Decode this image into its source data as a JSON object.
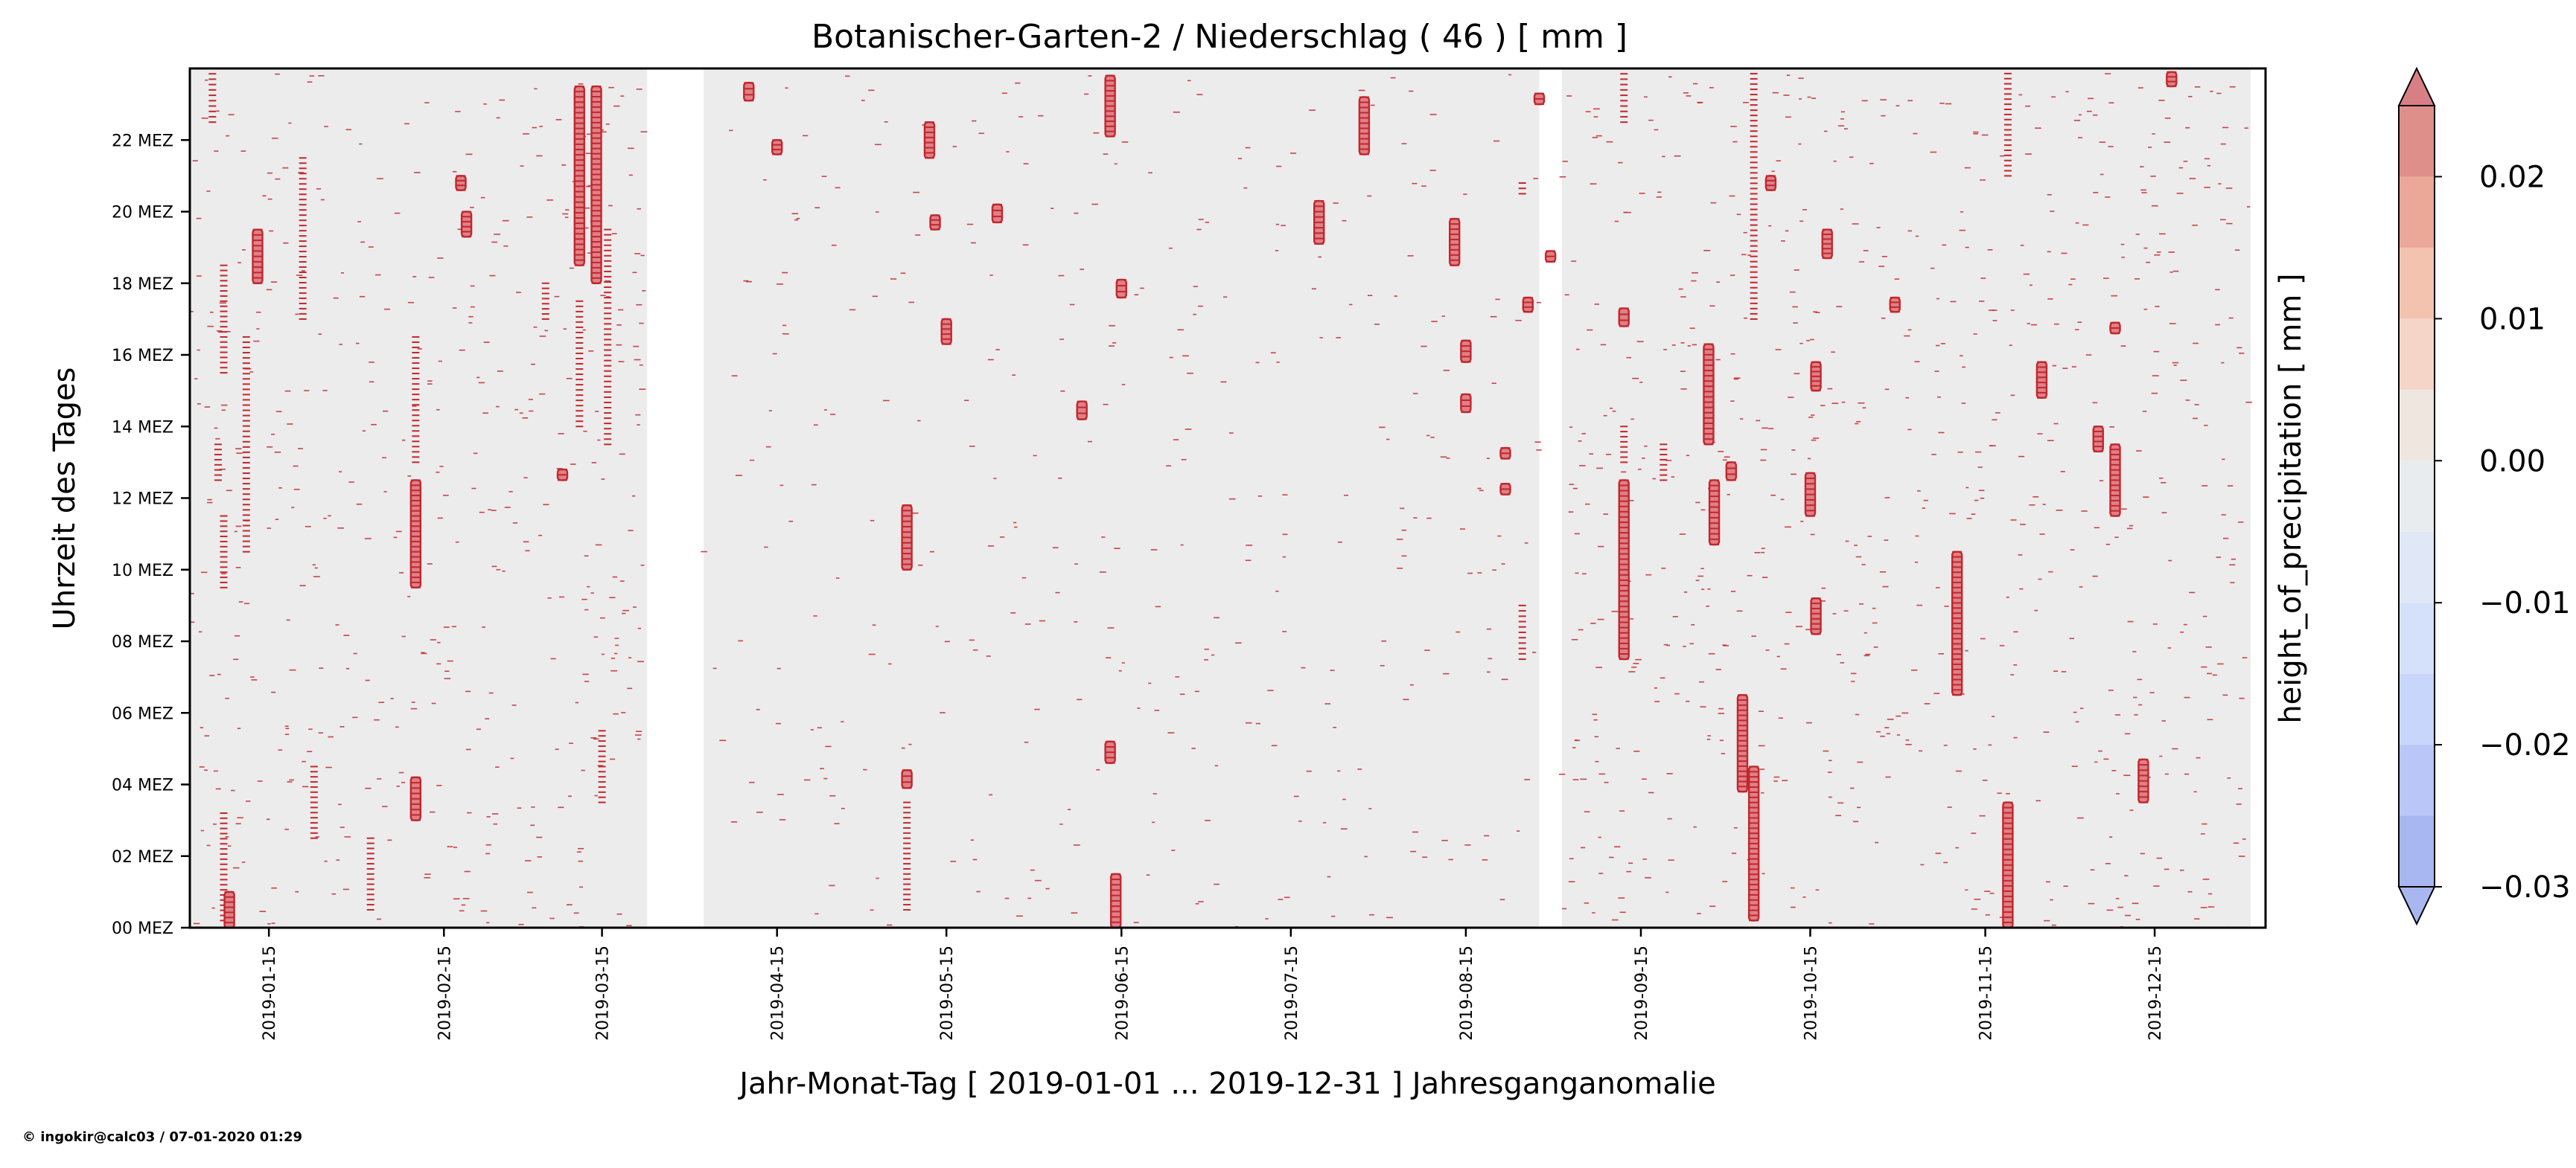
{
  "chart_data": {
    "type": "heatmap",
    "title": "Botanischer-Garten-2 / Niederschlag ( 46 ) [ mm ]",
    "xlabel": "Jahr-Monat-Tag [ 2019-01-01 ... 2019-12-31 ] Jahresganganomalie",
    "ylabel": "Uhrzeit des Tages",
    "colorbar_label": "height_of_precipitation [ mm ]",
    "x_range": [
      "2019-01-01",
      "2019-12-31"
    ],
    "y_range_hours": [
      0,
      24
    ],
    "x_ticks": [
      "2019-01-15",
      "2019-02-15",
      "2019-03-15",
      "2019-04-15",
      "2019-05-15",
      "2019-06-15",
      "2019-07-15",
      "2019-08-15",
      "2019-09-15",
      "2019-10-15",
      "2019-11-15",
      "2019-12-15"
    ],
    "y_ticks": [
      {
        "hour": 0,
        "label": "00 MEZ"
      },
      {
        "hour": 2,
        "label": "02 MEZ"
      },
      {
        "hour": 4,
        "label": "04 MEZ"
      },
      {
        "hour": 6,
        "label": "06 MEZ"
      },
      {
        "hour": 8,
        "label": "08 MEZ"
      },
      {
        "hour": 10,
        "label": "10 MEZ"
      },
      {
        "hour": 12,
        "label": "12 MEZ"
      },
      {
        "hour": 14,
        "label": "14 MEZ"
      },
      {
        "hour": 16,
        "label": "16 MEZ"
      },
      {
        "hour": 18,
        "label": "18 MEZ"
      },
      {
        "hour": 20,
        "label": "20 MEZ"
      },
      {
        "hour": 22,
        "label": "22 MEZ"
      }
    ],
    "data_gaps": [
      {
        "from": "2019-03-23",
        "to": "2019-04-01"
      },
      {
        "from": "2019-08-28",
        "to": "2019-08-31"
      }
    ],
    "colorbar": {
      "levels": [
        -0.03,
        -0.025,
        -0.02,
        -0.015,
        -0.01,
        -0.005,
        0.0,
        0.005,
        0.01,
        0.015,
        0.02,
        0.025
      ],
      "colors": [
        "#a8b7f0",
        "#b8c7f7",
        "#c7d6fa",
        "#d5e0fa",
        "#e0e8f7",
        "#e9ecef",
        "#efe6e0",
        "#f5d5c8",
        "#f4c3b0",
        "#eba898",
        "#df8f8a",
        "#d87f85"
      ],
      "ticks": [
        {
          "value": 0.02,
          "label": "0.02"
        },
        {
          "value": 0.01,
          "label": "0.01"
        },
        {
          "value": 0.0,
          "label": "0.00"
        },
        {
          "value": -0.01,
          "label": "−0.01"
        },
        {
          "value": -0.02,
          "label": "−0.02"
        },
        {
          "value": -0.03,
          "label": "−0.03"
        }
      ],
      "extend": "both"
    },
    "background_color": "#ececec",
    "event_color": "#c0272d",
    "strong_event_color": "#e07f86",
    "events": [
      {
        "d": 4,
        "h0": 22.5,
        "h1": 24,
        "v": 0.021
      },
      {
        "d": 5,
        "h0": 12.5,
        "h1": 13.5,
        "v": 0.02
      },
      {
        "d": 6,
        "h0": 0.2,
        "h1": 3.2,
        "v": 0.02
      },
      {
        "d": 6,
        "h0": 9.5,
        "h1": 11.5,
        "v": 0.021
      },
      {
        "d": 6,
        "h0": 15.5,
        "h1": 18.5,
        "v": 0.02
      },
      {
        "d": 7,
        "h0": 0,
        "h1": 1.0,
        "v": 0.022
      },
      {
        "d": 10,
        "h0": 10.5,
        "h1": 16.5,
        "v": 0.02
      },
      {
        "d": 12,
        "h0": 18,
        "h1": 19.5,
        "v": 0.022
      },
      {
        "d": 20,
        "h0": 17,
        "h1": 21.5,
        "v": 0.02
      },
      {
        "d": 22,
        "h0": 2.5,
        "h1": 4.5,
        "v": 0.02
      },
      {
        "d": 32,
        "h0": 0.5,
        "h1": 2.5,
        "v": 0.02
      },
      {
        "d": 40,
        "h0": 9.5,
        "h1": 12.5,
        "v": 0.023
      },
      {
        "d": 40,
        "h0": 3.0,
        "h1": 4.2,
        "v": 0.022
      },
      {
        "d": 40,
        "h0": 13.0,
        "h1": 16.5,
        "v": 0.02
      },
      {
        "d": 48,
        "h0": 20.6,
        "h1": 21.0,
        "v": 0.022
      },
      {
        "d": 49,
        "h0": 19.3,
        "h1": 20.0,
        "v": 0.022
      },
      {
        "d": 63,
        "h0": 17,
        "h1": 18,
        "v": 0.02
      },
      {
        "d": 66,
        "h0": 12.5,
        "h1": 12.8,
        "v": 0.023
      },
      {
        "d": 69,
        "h0": 18.5,
        "h1": 23.5,
        "v": 0.023
      },
      {
        "d": 69,
        "h0": 14,
        "h1": 17.5,
        "v": 0.021
      },
      {
        "d": 72,
        "h0": 18,
        "h1": 23.5,
        "v": 0.022
      },
      {
        "d": 74,
        "h0": 13.5,
        "h1": 19.5,
        "v": 0.021
      },
      {
        "d": 73,
        "h0": 3.5,
        "h1": 5.5,
        "v": 0.02
      },
      {
        "d": 99,
        "h0": 23.1,
        "h1": 23.6,
        "v": 0.022
      },
      {
        "d": 104,
        "h0": 21.6,
        "h1": 22.0,
        "v": 0.022
      },
      {
        "d": 127,
        "h0": 10,
        "h1": 11.8,
        "v": 0.023
      },
      {
        "d": 127,
        "h0": 3.9,
        "h1": 4.4,
        "v": 0.023
      },
      {
        "d": 127,
        "h0": 0.5,
        "h1": 3.5,
        "v": 0.02
      },
      {
        "d": 131,
        "h0": 21.5,
        "h1": 22.5,
        "v": 0.022
      },
      {
        "d": 132,
        "h0": 19.5,
        "h1": 19.9,
        "v": 0.022
      },
      {
        "d": 134,
        "h0": 16.3,
        "h1": 17.0,
        "v": 0.022
      },
      {
        "d": 143,
        "h0": 19.7,
        "h1": 20.2,
        "v": 0.022
      },
      {
        "d": 158,
        "h0": 14.2,
        "h1": 14.7,
        "v": 0.022
      },
      {
        "d": 163,
        "h0": 22.1,
        "h1": 23.8,
        "v": 0.024
      },
      {
        "d": 163,
        "h0": 4.6,
        "h1": 5.2,
        "v": 0.022
      },
      {
        "d": 164,
        "h0": 0,
        "h1": 1.5,
        "v": 0.023
      },
      {
        "d": 165,
        "h0": 17.6,
        "h1": 18.1,
        "v": 0.022
      },
      {
        "d": 200,
        "h0": 19.1,
        "h1": 20.3,
        "v": 0.023
      },
      {
        "d": 208,
        "h0": 21.6,
        "h1": 23.2,
        "v": 0.024
      },
      {
        "d": 224,
        "h0": 18.5,
        "h1": 19.8,
        "v": 0.023
      },
      {
        "d": 226,
        "h0": 15.8,
        "h1": 16.4,
        "v": 0.022
      },
      {
        "d": 226,
        "h0": 14.4,
        "h1": 14.9,
        "v": 0.022
      },
      {
        "d": 233,
        "h0": 12.1,
        "h1": 12.4,
        "v": 0.022
      },
      {
        "d": 233,
        "h0": 13.1,
        "h1": 13.4,
        "v": 0.022
      },
      {
        "d": 236,
        "h0": 20.5,
        "h1": 20.8,
        "v": 0.021
      },
      {
        "d": 236,
        "h0": 7.5,
        "h1": 9.0,
        "v": 0.02
      },
      {
        "d": 237,
        "h0": 17.2,
        "h1": 17.6,
        "v": 0.022
      },
      {
        "d": 239,
        "h0": 23.0,
        "h1": 23.3,
        "v": 0.022
      },
      {
        "d": 241,
        "h0": 18.6,
        "h1": 18.9,
        "v": 0.022
      },
      {
        "d": 254,
        "h0": 22.5,
        "h1": 24,
        "v": 0.02
      },
      {
        "d": 254,
        "h0": 7.5,
        "h1": 12.5,
        "v": 0.022
      },
      {
        "d": 254,
        "h0": 13,
        "h1": 14,
        "v": 0.021
      },
      {
        "d": 254,
        "h0": 16.8,
        "h1": 17.3,
        "v": 0.023
      },
      {
        "d": 261,
        "h0": 12.5,
        "h1": 13.5,
        "v": 0.02
      },
      {
        "d": 269,
        "h0": 13.5,
        "h1": 16.3,
        "v": 0.022
      },
      {
        "d": 270,
        "h0": 10.7,
        "h1": 12.5,
        "v": 0.022
      },
      {
        "d": 273,
        "h0": 12.5,
        "h1": 13.0,
        "v": 0.022
      },
      {
        "d": 275,
        "h0": 3.8,
        "h1": 6.5,
        "v": 0.023
      },
      {
        "d": 277,
        "h0": 0.2,
        "h1": 4.5,
        "v": 0.022
      },
      {
        "d": 277,
        "h0": 17.0,
        "h1": 24,
        "v": 0.02
      },
      {
        "d": 280,
        "h0": 20.6,
        "h1": 21.0,
        "v": 0.022
      },
      {
        "d": 287,
        "h0": 11.5,
        "h1": 12.7,
        "v": 0.022
      },
      {
        "d": 288,
        "h0": 15.0,
        "h1": 15.8,
        "v": 0.022
      },
      {
        "d": 288,
        "h0": 8.2,
        "h1": 9.2,
        "v": 0.022
      },
      {
        "d": 290,
        "h0": 18.7,
        "h1": 19.5,
        "v": 0.022
      },
      {
        "d": 302,
        "h0": 17.2,
        "h1": 17.6,
        "v": 0.022
      },
      {
        "d": 313,
        "h0": 6.5,
        "h1": 10.5,
        "v": 0.022
      },
      {
        "d": 322,
        "h0": 0,
        "h1": 3.5,
        "v": 0.023
      },
      {
        "d": 322,
        "h0": 21,
        "h1": 24,
        "v": 0.02
      },
      {
        "d": 328,
        "h0": 14.8,
        "h1": 15.8,
        "v": 0.022
      },
      {
        "d": 338,
        "h0": 13.3,
        "h1": 14.0,
        "v": 0.022
      },
      {
        "d": 341,
        "h0": 11.5,
        "h1": 13.5,
        "v": 0.023
      },
      {
        "d": 341,
        "h0": 16.6,
        "h1": 16.9,
        "v": 0.022
      },
      {
        "d": 346,
        "h0": 3.5,
        "h1": 4.7,
        "v": 0.022
      },
      {
        "d": 351,
        "h0": 23.5,
        "h1": 23.9,
        "v": 0.022
      }
    ]
  },
  "footer": {
    "credit": "© ingokir@calc03 / 07-01-2020 01:29",
    "credit_color": "#0000cc"
  }
}
